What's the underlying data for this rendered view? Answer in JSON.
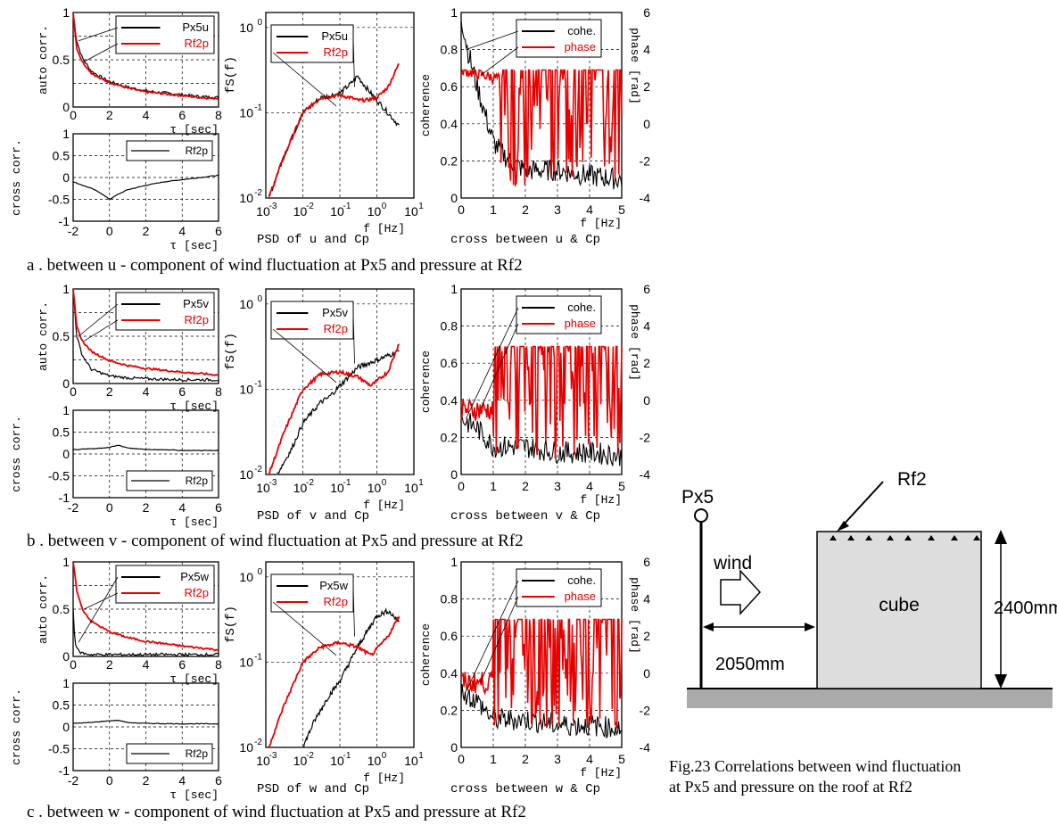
{
  "colors": {
    "series_black": "#000000",
    "series_red": "#e60000",
    "ground": "#aaaaaa",
    "cube_fill": "#dddddd"
  },
  "rows": [
    {
      "caption": "a . between u - component of wind fluctuation at Px5 and pressure at Rf2",
      "comp": "u",
      "auto": {
        "ylabel": "auto corr.",
        "xlabel": "τ [sec]",
        "xticks": [
          "0",
          "2",
          "4",
          "6",
          "8"
        ],
        "yticks": [
          "0",
          "0.5",
          "1"
        ],
        "legend": [
          "Px5u",
          "Rf2p"
        ]
      },
      "cross": {
        "ylabel": "cross corr.",
        "xlabel": "τ [sec]",
        "xticks": [
          "-2",
          "0",
          "2",
          "4",
          "6"
        ],
        "yticks": [
          "-1",
          "-0.5",
          "0",
          "0.5",
          "1"
        ],
        "legend": [
          "Rf2p"
        ]
      },
      "psd": {
        "ylabel": "fS(f)",
        "xlabel": "f [Hz]",
        "title": "PSD of u and Cp",
        "xticks": [
          "10⁻³",
          "10⁻²",
          "10⁻¹",
          "10⁰",
          "10¹"
        ],
        "yticks": [
          "10⁻²",
          "10⁻¹",
          "10⁰"
        ],
        "legend": [
          "Px5u",
          "Rf2p"
        ]
      },
      "coh": {
        "ylabel": "coherence",
        "ylabel2": "phase [rad]",
        "xlabel": "f [Hz]",
        "title": "cross between u & Cp",
        "xticks": [
          "0",
          "1",
          "2",
          "3",
          "4",
          "5"
        ],
        "yticks": [
          "0",
          "0.2",
          "0.4",
          "0.6",
          "0.8",
          "1"
        ],
        "yticks2": [
          "-4",
          "-2",
          "0",
          "2",
          "4",
          "6"
        ],
        "legend": [
          "cohe.",
          "phase"
        ]
      }
    },
    {
      "caption": "b . between v - component of wind fluctuation at Px5 and pressure at Rf2",
      "comp": "v",
      "auto": {
        "ylabel": "auto corr.",
        "xlabel": "τ [sec]",
        "xticks": [
          "0",
          "2",
          "4",
          "6",
          "8"
        ],
        "yticks": [
          "0",
          "0.5",
          "1"
        ],
        "legend": [
          "Px5v",
          "Rf2p"
        ]
      },
      "cross": {
        "ylabel": "cross corr.",
        "xlabel": "τ [sec]",
        "xticks": [
          "-2",
          "0",
          "2",
          "4",
          "6"
        ],
        "yticks": [
          "-1",
          "-0.5",
          "0",
          "0.5",
          "1"
        ],
        "legend": [
          "Rf2p"
        ]
      },
      "psd": {
        "ylabel": "fS(f)",
        "xlabel": "f [Hz]",
        "title": "PSD of v and Cp",
        "xticks": [
          "10⁻³",
          "10⁻²",
          "10⁻¹",
          "10⁰",
          "10¹"
        ],
        "yticks": [
          "10⁻²",
          "10⁻¹",
          "10⁰"
        ],
        "legend": [
          "Px5v",
          "Rf2p"
        ]
      },
      "coh": {
        "ylabel": "coherence",
        "ylabel2": "phase [rad]",
        "xlabel": "f [Hz]",
        "title": "cross between v & Cp",
        "xticks": [
          "0",
          "1",
          "2",
          "3",
          "4",
          "5"
        ],
        "yticks": [
          "0",
          "0.2",
          "0.4",
          "0.6",
          "0.8",
          "1"
        ],
        "yticks2": [
          "-4",
          "-2",
          "0",
          "2",
          "4",
          "6"
        ],
        "legend": [
          "cohe.",
          "phase"
        ]
      }
    },
    {
      "caption": "c . between w - component of wind fluctuation at Px5 and pressure at Rf2",
      "comp": "w",
      "auto": {
        "ylabel": "auto corr.",
        "xlabel": "τ [sec]",
        "xticks": [
          "0",
          "2",
          "4",
          "6",
          "8"
        ],
        "yticks": [
          "0",
          "0.5",
          "1"
        ],
        "legend": [
          "Px5w",
          "Rf2p"
        ]
      },
      "cross": {
        "ylabel": "cross corr.",
        "xlabel": "τ [sec]",
        "xticks": [
          "-2",
          "0",
          "2",
          "4",
          "6"
        ],
        "yticks": [
          "-1",
          "-0.5",
          "0",
          "0.5",
          "1"
        ],
        "legend": [
          "Rf2p"
        ]
      },
      "psd": {
        "ylabel": "fS(f)",
        "xlabel": "f [Hz]",
        "title": "PSD of w and Cp",
        "xticks": [
          "10⁻³",
          "10⁻²",
          "10⁻¹",
          "10⁰",
          "10¹"
        ],
        "yticks": [
          "10⁻²",
          "10⁻¹",
          "10⁰"
        ],
        "legend": [
          "Px5w",
          "Rf2p"
        ]
      },
      "coh": {
        "ylabel": "coherence",
        "ylabel2": "phase [rad]",
        "xlabel": "f [Hz]",
        "title": "cross between w & Cp",
        "xticks": [
          "0",
          "1",
          "2",
          "3",
          "4",
          "5"
        ],
        "yticks": [
          "0",
          "0.2",
          "0.4",
          "0.6",
          "0.8",
          "1"
        ],
        "yticks2": [
          "-4",
          "-2",
          "0",
          "2",
          "4",
          "6"
        ],
        "legend": [
          "cohe.",
          "phase"
        ]
      }
    }
  ],
  "diagram": {
    "rf2_label": "Rf2",
    "px5_label": "Px5",
    "wind_label": "wind",
    "cube_label": "cube",
    "height_label": "2400mm",
    "distance_label": "2050mm",
    "caption_line1": "Fig.23    Correlations between wind fluctuation",
    "caption_line2": "at Px5 and pressure on the roof at Rf2"
  },
  "chart_data": [
    {
      "type": "line",
      "panel": "a-auto",
      "xlim": [
        0,
        8
      ],
      "ylim": [
        0,
        1
      ],
      "series": [
        {
          "name": "Px5u",
          "x": [
            0,
            0.2,
            0.5,
            1,
            1.5,
            2,
            3,
            4,
            5,
            6,
            7,
            8
          ],
          "values": [
            1,
            0.7,
            0.52,
            0.38,
            0.32,
            0.27,
            0.21,
            0.17,
            0.15,
            0.13,
            0.11,
            0.1
          ]
        },
        {
          "name": "Rf2p",
          "x": [
            0,
            0.2,
            0.5,
            1,
            1.5,
            2,
            3,
            4,
            5,
            6,
            7,
            8
          ],
          "values": [
            1,
            0.62,
            0.48,
            0.36,
            0.3,
            0.26,
            0.2,
            0.16,
            0.14,
            0.12,
            0.1,
            0.09
          ]
        }
      ]
    },
    {
      "type": "line",
      "panel": "a-cross",
      "xlim": [
        -2,
        6
      ],
      "ylim": [
        -1,
        1
      ],
      "series": [
        {
          "name": "Rf2p",
          "x": [
            -2,
            -1,
            -0.5,
            0,
            0.5,
            1,
            2,
            3,
            4,
            5,
            6
          ],
          "values": [
            -0.1,
            -0.25,
            -0.35,
            -0.5,
            -0.38,
            -0.28,
            -0.18,
            -0.1,
            -0.05,
            0,
            0.05
          ]
        }
      ]
    },
    {
      "type": "line",
      "panel": "a-psd",
      "xlim": [
        0.001,
        10
      ],
      "ylim": [
        0.01,
        1.5
      ],
      "log": true,
      "series": [
        {
          "name": "Px5u",
          "x": [
            0.0012,
            0.003,
            0.01,
            0.03,
            0.1,
            0.2,
            0.3,
            0.5,
            1,
            2,
            4
          ],
          "values": [
            0.01,
            0.03,
            0.1,
            0.15,
            0.17,
            0.22,
            0.27,
            0.2,
            0.14,
            0.1,
            0.07
          ]
        },
        {
          "name": "Rf2p",
          "x": [
            0.0012,
            0.003,
            0.01,
            0.03,
            0.1,
            0.2,
            0.3,
            0.5,
            1,
            2,
            4
          ],
          "values": [
            0.01,
            0.03,
            0.1,
            0.15,
            0.16,
            0.15,
            0.14,
            0.14,
            0.15,
            0.2,
            0.38
          ]
        }
      ]
    },
    {
      "type": "line",
      "panel": "a-coh",
      "xlim": [
        0,
        5
      ],
      "ylim": [
        0,
        1
      ],
      "y2lim": [
        -4,
        6
      ],
      "series": [
        {
          "name": "cohe.",
          "x": [
            0,
            0.2,
            0.5,
            1,
            1.5,
            2,
            3,
            4,
            5
          ],
          "values": [
            0.98,
            0.8,
            0.6,
            0.3,
            0.2,
            0.15,
            0.15,
            0.12,
            0.1
          ]
        },
        {
          "name": "phase",
          "x": [
            0,
            0.5,
            1,
            1.5,
            2,
            3,
            4,
            5
          ],
          "values": [
            3,
            2.8,
            2.3,
            2.5,
            1,
            0,
            -1,
            0
          ],
          "axis": "right"
        }
      ]
    },
    {
      "type": "line",
      "panel": "b-auto",
      "xlim": [
        0,
        8
      ],
      "ylim": [
        0,
        1
      ],
      "series": [
        {
          "name": "Px5v",
          "x": [
            0,
            0.2,
            0.5,
            1,
            2,
            3,
            4,
            6,
            8
          ],
          "values": [
            1,
            0.5,
            0.3,
            0.15,
            0.08,
            0.06,
            0.05,
            0.04,
            0.04
          ]
        },
        {
          "name": "Rf2p",
          "x": [
            0,
            0.2,
            0.5,
            1,
            2,
            3,
            4,
            6,
            8
          ],
          "values": [
            1,
            0.6,
            0.45,
            0.34,
            0.24,
            0.19,
            0.16,
            0.12,
            0.09
          ]
        }
      ]
    },
    {
      "type": "line",
      "panel": "b-cross",
      "xlim": [
        -2,
        6
      ],
      "ylim": [
        -1,
        1
      ],
      "series": [
        {
          "name": "Rf2p",
          "x": [
            -2,
            -1,
            0,
            0.5,
            1,
            2,
            3,
            4,
            6
          ],
          "values": [
            0.1,
            0.12,
            0.15,
            0.2,
            0.14,
            0.1,
            0.1,
            0.08,
            0.08
          ]
        }
      ]
    },
    {
      "type": "line",
      "panel": "b-psd",
      "xlim": [
        0.001,
        10
      ],
      "ylim": [
        0.01,
        1.5
      ],
      "log": true,
      "series": [
        {
          "name": "Px5v",
          "x": [
            0.002,
            0.005,
            0.01,
            0.03,
            0.05,
            0.1,
            0.3,
            1,
            4
          ],
          "values": [
            0.01,
            0.02,
            0.04,
            0.07,
            0.08,
            0.11,
            0.18,
            0.22,
            0.28
          ]
        },
        {
          "name": "Rf2p",
          "x": [
            0.0012,
            0.003,
            0.01,
            0.03,
            0.1,
            0.3,
            0.7,
            2,
            4
          ],
          "values": [
            0.01,
            0.03,
            0.1,
            0.15,
            0.16,
            0.14,
            0.11,
            0.16,
            0.35
          ]
        }
      ]
    },
    {
      "type": "line",
      "panel": "b-coh",
      "xlim": [
        0,
        5
      ],
      "ylim": [
        0,
        1
      ],
      "y2lim": [
        -4,
        6
      ],
      "series": [
        {
          "name": "cohe.",
          "x": [
            0,
            0.5,
            1,
            2,
            3,
            4,
            5
          ],
          "values": [
            0.3,
            0.25,
            0.15,
            0.15,
            0.12,
            0.12,
            0.1
          ]
        },
        {
          "name": "phase",
          "x": [
            0,
            0.5,
            1,
            2,
            3,
            4,
            5
          ],
          "values": [
            -1,
            -0.5,
            0,
            -1,
            0,
            -1,
            -2
          ],
          "axis": "right"
        }
      ]
    },
    {
      "type": "line",
      "panel": "c-auto",
      "xlim": [
        0,
        8
      ],
      "ylim": [
        0,
        1
      ],
      "series": [
        {
          "name": "Px5w",
          "x": [
            0,
            0.1,
            0.3,
            0.6,
            1,
            2,
            4,
            8
          ],
          "values": [
            0.5,
            0.15,
            0.05,
            0.03,
            0.02,
            0.02,
            0.02,
            0.02
          ]
        },
        {
          "name": "Rf2p",
          "x": [
            0,
            0.2,
            0.5,
            1,
            2,
            3,
            4,
            6,
            8
          ],
          "values": [
            1,
            0.7,
            0.5,
            0.37,
            0.26,
            0.2,
            0.16,
            0.11,
            0.07
          ]
        }
      ]
    },
    {
      "type": "line",
      "panel": "c-cross",
      "xlim": [
        -2,
        6
      ],
      "ylim": [
        -1,
        1
      ],
      "series": [
        {
          "name": "Rf2p",
          "x": [
            -2,
            -1,
            0,
            0.5,
            1,
            2,
            4,
            6
          ],
          "values": [
            0.08,
            0.1,
            0.14,
            0.15,
            0.1,
            0.08,
            0.07,
            0.07
          ]
        }
      ]
    },
    {
      "type": "line",
      "panel": "c-psd",
      "xlim": [
        0.001,
        10
      ],
      "ylim": [
        0.01,
        1.5
      ],
      "log": true,
      "series": [
        {
          "name": "Px5w",
          "x": [
            0.01,
            0.02,
            0.05,
            0.1,
            0.3,
            1,
            2,
            4
          ],
          "values": [
            0.01,
            0.02,
            0.04,
            0.06,
            0.15,
            0.35,
            0.4,
            0.3
          ]
        },
        {
          "name": "Rf2p",
          "x": [
            0.0012,
            0.003,
            0.01,
            0.03,
            0.1,
            0.3,
            0.7,
            2,
            4
          ],
          "values": [
            0.01,
            0.03,
            0.1,
            0.15,
            0.17,
            0.15,
            0.12,
            0.2,
            0.35
          ]
        }
      ]
    },
    {
      "type": "line",
      "panel": "c-coh",
      "xlim": [
        0,
        5
      ],
      "ylim": [
        0,
        1
      ],
      "y2lim": [
        -4,
        6
      ],
      "series": [
        {
          "name": "cohe.",
          "x": [
            0,
            0.5,
            1,
            2,
            3,
            4,
            5
          ],
          "values": [
            0.3,
            0.25,
            0.15,
            0.15,
            0.12,
            0.12,
            0.1
          ]
        },
        {
          "name": "phase",
          "x": [
            0,
            0.5,
            1,
            2,
            3,
            4,
            5
          ],
          "values": [
            -1,
            -0.5,
            -1,
            -2,
            0,
            -1,
            1
          ],
          "axis": "right"
        }
      ]
    }
  ]
}
